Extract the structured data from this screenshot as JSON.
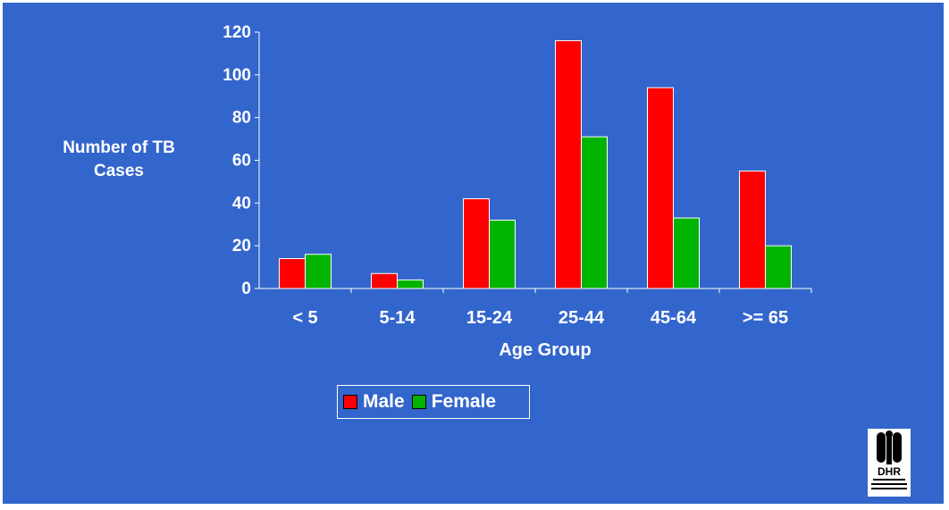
{
  "chart_data": {
    "type": "bar",
    "categories": [
      "< 5",
      "5-14",
      "15-24",
      "25-44",
      "45-64",
      ">= 65"
    ],
    "series": [
      {
        "name": "Male",
        "color": "#ff0000",
        "values": [
          14,
          7,
          42,
          116,
          94,
          55
        ]
      },
      {
        "name": "Female",
        "color": "#00b400",
        "values": [
          16,
          4,
          32,
          71,
          33,
          20
        ]
      }
    ],
    "y_ticks": [
      0,
      20,
      40,
      60,
      80,
      100,
      120
    ],
    "ylim": [
      0,
      120
    ],
    "ylabel": "Number of TB Cases",
    "xlabel": "Age Group",
    "grid": false,
    "legend": "bottom-center"
  },
  "logo": {
    "text": "DHR",
    "sub": "DEPARTMENT OF HUMAN RESOURCES"
  }
}
